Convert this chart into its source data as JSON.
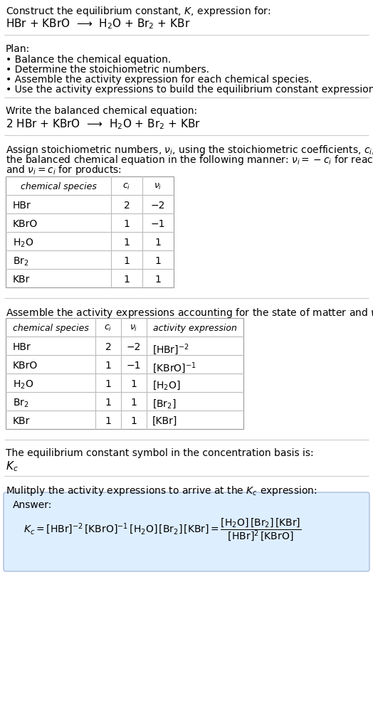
{
  "title_line1": "Construct the equilibrium constant, $K$, expression for:",
  "title_line2": "HBr + KBrO  ⟶  H$_2$O + Br$_2$ + KBr",
  "plan_header": "Plan:",
  "plan_items": [
    "• Balance the chemical equation.",
    "• Determine the stoichiometric numbers.",
    "• Assemble the activity expression for each chemical species.",
    "• Use the activity expressions to build the equilibrium constant expression."
  ],
  "balanced_header": "Write the balanced chemical equation:",
  "balanced_eq": "2 HBr + KBrO  ⟶  H$_2$O + Br$_2$ + KBr",
  "stoich_intro_lines": [
    "Assign stoichiometric numbers, $\\nu_i$, using the stoichiometric coefficients, $c_i$, from",
    "the balanced chemical equation in the following manner: $\\nu_i = -c_i$ for reactants",
    "and $\\nu_i = c_i$ for products:"
  ],
  "table1_headers": [
    "chemical species",
    "$c_i$",
    "$\\nu_i$"
  ],
  "table1_data": [
    [
      "HBr",
      "2",
      "−2"
    ],
    [
      "KBrO",
      "1",
      "−1"
    ],
    [
      "H$_2$O",
      "1",
      "1"
    ],
    [
      "Br$_2$",
      "1",
      "1"
    ],
    [
      "KBr",
      "1",
      "1"
    ]
  ],
  "activity_intro": "Assemble the activity expressions accounting for the state of matter and $\\nu_i$:",
  "table2_headers": [
    "chemical species",
    "$c_i$",
    "$\\nu_i$",
    "activity expression"
  ],
  "table2_data": [
    [
      "HBr",
      "2",
      "−2",
      "[HBr]$^{-2}$"
    ],
    [
      "KBrO",
      "1",
      "−1",
      "[KBrO]$^{-1}$"
    ],
    [
      "H$_2$O",
      "1",
      "1",
      "[H$_2$O]"
    ],
    [
      "Br$_2$",
      "1",
      "1",
      "[Br$_2$]"
    ],
    [
      "KBr",
      "1",
      "1",
      "[KBr]"
    ]
  ],
  "kc_intro": "The equilibrium constant symbol in the concentration basis is:",
  "kc_symbol": "$K_c$",
  "multiply_intro": "Mulitply the activity expressions to arrive at the $K_c$ expression:",
  "answer_label": "Answer:",
  "answer_box_color": "#ddeeff",
  "answer_border_color": "#aabbdd",
  "bg_color": "#ffffff",
  "text_color": "#000000",
  "line_color": "#cccccc",
  "table_border_color": "#999999",
  "table_line_color": "#bbbbbb"
}
